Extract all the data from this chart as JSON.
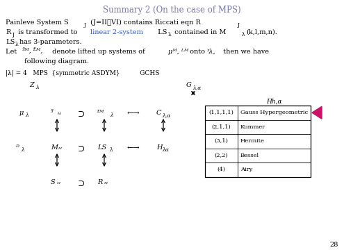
{
  "title": "Summary 2 (On the case of MPS)",
  "title_color": "#7777aa",
  "title_fontsize": 8.5,
  "bg_color": "#ffffff",
  "text_color": "#000000",
  "blue_color": "#3355bb",
  "table_data": [
    [
      "(1,1,1,1)",
      "Gauss Hypergeometric"
    ],
    [
      "(2,1,1)",
      "Kummer"
    ],
    [
      "(3,1)",
      "Hermite"
    ],
    [
      "(2,2)",
      "Bessel"
    ],
    [
      "(4)",
      "Airy"
    ]
  ],
  "arrow_marker_color": "#cc1166",
  "page_number": "28"
}
